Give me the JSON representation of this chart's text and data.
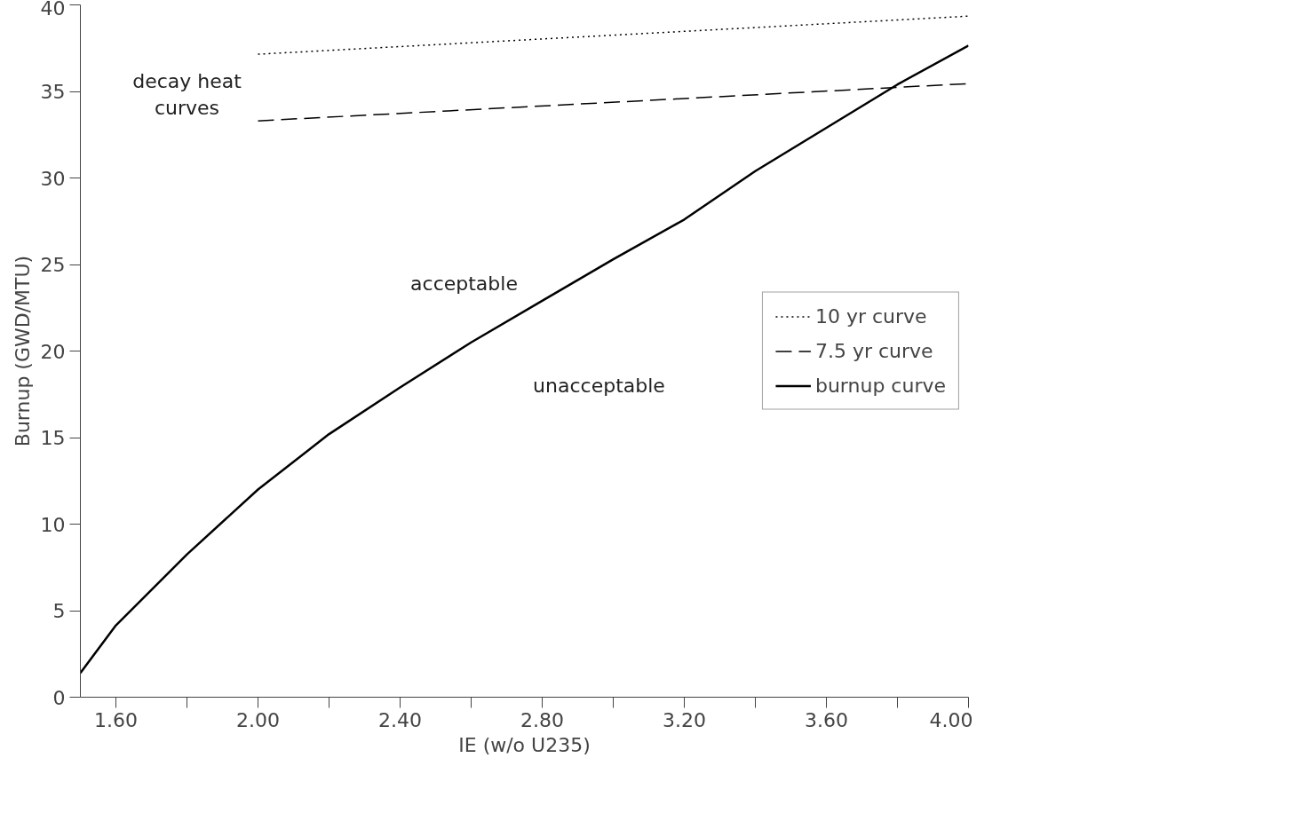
{
  "chart_data": {
    "type": "line",
    "xlabel": "IE (w/o U235)",
    "ylabel": "Burnup (GWD/MTU)",
    "xlim": [
      1.5,
      4.0
    ],
    "ylim": [
      0,
      40
    ],
    "xticks": [
      {
        "value": 1.6,
        "label": "1.60"
      },
      {
        "value": 1.8,
        "label": null
      },
      {
        "value": 2.0,
        "label": "2.00"
      },
      {
        "value": 2.2,
        "label": null
      },
      {
        "value": 2.4,
        "label": "2.40"
      },
      {
        "value": 2.6,
        "label": null
      },
      {
        "value": 2.8,
        "label": "2.80"
      },
      {
        "value": 3.0,
        "label": null
      },
      {
        "value": 3.2,
        "label": "3.20"
      },
      {
        "value": 3.4,
        "label": null
      },
      {
        "value": 3.6,
        "label": "3.60"
      },
      {
        "value": 3.8,
        "label": null
      },
      {
        "value": 4.0,
        "label": "4.00"
      }
    ],
    "yticks": [
      0,
      5,
      10,
      15,
      20,
      25,
      30,
      35,
      40
    ],
    "grid": false,
    "legend": "right",
    "marker": "none",
    "series": [
      {
        "name": "10 yr curve",
        "color": "#000000",
        "line_style": "dotted",
        "x": [
          2.0,
          4.0
        ],
        "values": [
          37.15,
          39.35
        ]
      },
      {
        "name": "7.5 yr curve",
        "color": "#000000",
        "line_style": "dashed",
        "x": [
          2.0,
          4.0
        ],
        "values": [
          33.3,
          35.45
        ]
      },
      {
        "name": "burnup curve",
        "color": "#000000",
        "line_style": "solid",
        "x": [
          1.5,
          1.6,
          1.8,
          2.0,
          2.2,
          2.4,
          2.6,
          2.8,
          3.0,
          3.2,
          3.4,
          3.6,
          3.8,
          4.0
        ],
        "values": [
          1.4,
          4.15,
          8.25,
          12.0,
          15.2,
          17.9,
          20.5,
          22.9,
          25.3,
          27.6,
          30.4,
          32.9,
          35.4,
          37.65
        ]
      }
    ],
    "annotations": [
      "decay heat\ncurves",
      "acceptable",
      "unacceptable"
    ]
  }
}
